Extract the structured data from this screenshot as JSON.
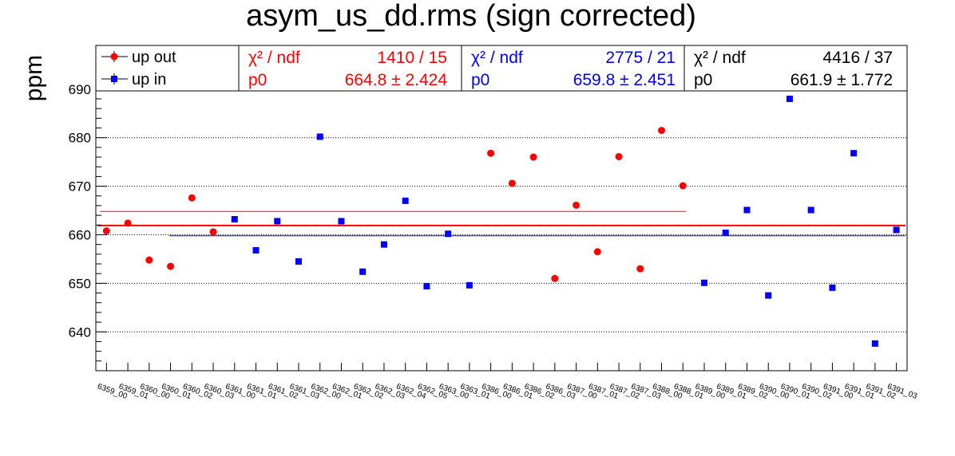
{
  "chart_data": {
    "type": "scatter",
    "title": "asym_us_dd.rms (sign corrected)",
    "ylabel": "ppm",
    "xlabel": "",
    "ylim": [
      632,
      699
    ],
    "yticks": [
      640,
      650,
      660,
      670,
      680,
      690
    ],
    "categories": [
      "6359_00",
      "6359_01",
      "6360_00",
      "6360_01",
      "6360_02",
      "6360_03",
      "6361_00",
      "6361_01",
      "6361_02",
      "6361_03",
      "6362_00",
      "6362_01",
      "6362_02",
      "6362_03",
      "6362_04",
      "6362_05",
      "6363_00",
      "6363_01",
      "6386_00",
      "6386_01",
      "6386_02",
      "6386_03",
      "6387_00",
      "6387_01",
      "6387_02",
      "6387_03",
      "6388_00",
      "6388_01",
      "6389_00",
      "6389_01",
      "6389_02",
      "6390_00",
      "6390_01",
      "6390_02",
      "6391_00",
      "6391_01",
      "6391_02",
      "6391_03"
    ],
    "series": [
      {
        "name": "up out",
        "color": "#ff0000",
        "marker": "circle",
        "indices": [
          0,
          1,
          2,
          3,
          4,
          5,
          18,
          19,
          20,
          21,
          22,
          23,
          24,
          25,
          26,
          27
        ],
        "values": [
          660.8,
          662.4,
          654.8,
          653.5,
          667.6,
          660.6,
          676.8,
          670.6,
          676.0,
          651.0,
          666.1,
          656.5,
          676.1,
          653.0,
          681.5,
          670.1
        ],
        "fit": {
          "p0": 664.8,
          "p0_err": 2.424,
          "chi2": 1410,
          "ndf": 15,
          "chi2_label": "χ² / ndf",
          "chi2_value": "1410 / 15",
          "p0_label": "p0",
          "p0_value": "664.8 ± 2.424"
        }
      },
      {
        "name": "up in",
        "color": "#0000ff",
        "marker": "square",
        "indices": [
          6,
          7,
          8,
          9,
          10,
          11,
          12,
          13,
          14,
          15,
          16,
          17,
          28,
          29,
          30,
          31,
          32,
          33,
          34,
          35,
          36,
          37
        ],
        "values": [
          663.2,
          656.8,
          662.8,
          654.5,
          680.2,
          662.8,
          652.4,
          658.0,
          667.0,
          649.4,
          660.2,
          649.6,
          650.1,
          660.4,
          665.1,
          647.5,
          688.0,
          665.1,
          649.1,
          676.8,
          637.6,
          661.0
        ],
        "fit": {
          "p0": 659.8,
          "p0_err": 2.451,
          "chi2": 2775,
          "ndf": 21,
          "chi2_label": "χ² / ndf",
          "chi2_value": "2775 / 21",
          "p0_label": "p0",
          "p0_value": "659.8 ± 2.451"
        }
      }
    ],
    "combined_fit": {
      "color": "#ff0000",
      "p0": 661.9,
      "p0_err": 1.772,
      "chi2": 4416,
      "ndf": 37,
      "chi2_label": "χ² / ndf",
      "chi2_value": "4416 / 37",
      "p0_label": "p0",
      "p0_value": "661.9 ± 1.772"
    },
    "grid": "y-dotted",
    "legend_position": "top"
  }
}
